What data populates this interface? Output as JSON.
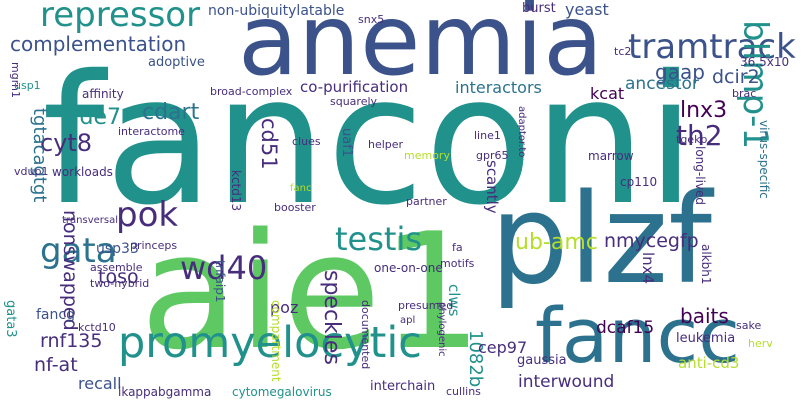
{
  "palette": {
    "yellow": "#fde725",
    "lime": "#b5de2b",
    "green": "#5ec962",
    "aqua": "#21918c",
    "teal": "#2c728e",
    "blue": "#3b528b",
    "indigo": "#472d7b",
    "purple": "#440154"
  },
  "words": [
    "fanconi",
    "anemia",
    "aie1",
    "plzf",
    "fancc",
    "promyelocytic",
    "tramtrack",
    "repressor",
    "complementation",
    "testis",
    "gata",
    "pok",
    "wd40",
    "blimp-1",
    "cyt8",
    "ade7",
    "cdart",
    "lnx3",
    "th2",
    "gaap",
    "dcir2",
    "adoptive",
    "ancestor",
    "kcat",
    "interactors",
    "co-purification",
    "broad-complex",
    "non-ubiquitylatable",
    "yeast",
    "burst",
    "speckles",
    "cd51",
    "ub-amc",
    "nmycegfp",
    "usp33",
    "toso",
    "nonswapped",
    "tgtacagtgt",
    "nf-at",
    "rnf135",
    "recall",
    "fancg",
    "gata3",
    "poz",
    "tnfaip1",
    "kctd13",
    "interwound",
    "1082b",
    "cep97",
    "dcaf15",
    "baits",
    "leukemia",
    "lnx4",
    "clws",
    "scantly",
    "uaf1",
    "alkbh1",
    "interchain",
    "anti-cd3",
    "ikappabgamma",
    "cytomegalovirus",
    "gaussia",
    "long-lived",
    "marrow",
    "cp110",
    "tgekp",
    "virus-specific",
    "36.5x10",
    "snx5",
    "mgrn1",
    "usp1",
    "affinity",
    "squarely",
    "interactome",
    "clues",
    "helper",
    "memory",
    "workloads",
    "vdup1",
    "transversal",
    "two-hybrid",
    "assemble",
    "princeps",
    "booster",
    "partner",
    "phylogenic",
    "documented",
    "presumed",
    "compartment",
    "motifs",
    "one-on-one",
    "line1",
    "gpr65",
    "adaptor.to",
    "fanc",
    "sake",
    "herv",
    "brac",
    "tc2",
    "kctd10",
    "apl",
    "fa",
    "cullins"
  ]
}
